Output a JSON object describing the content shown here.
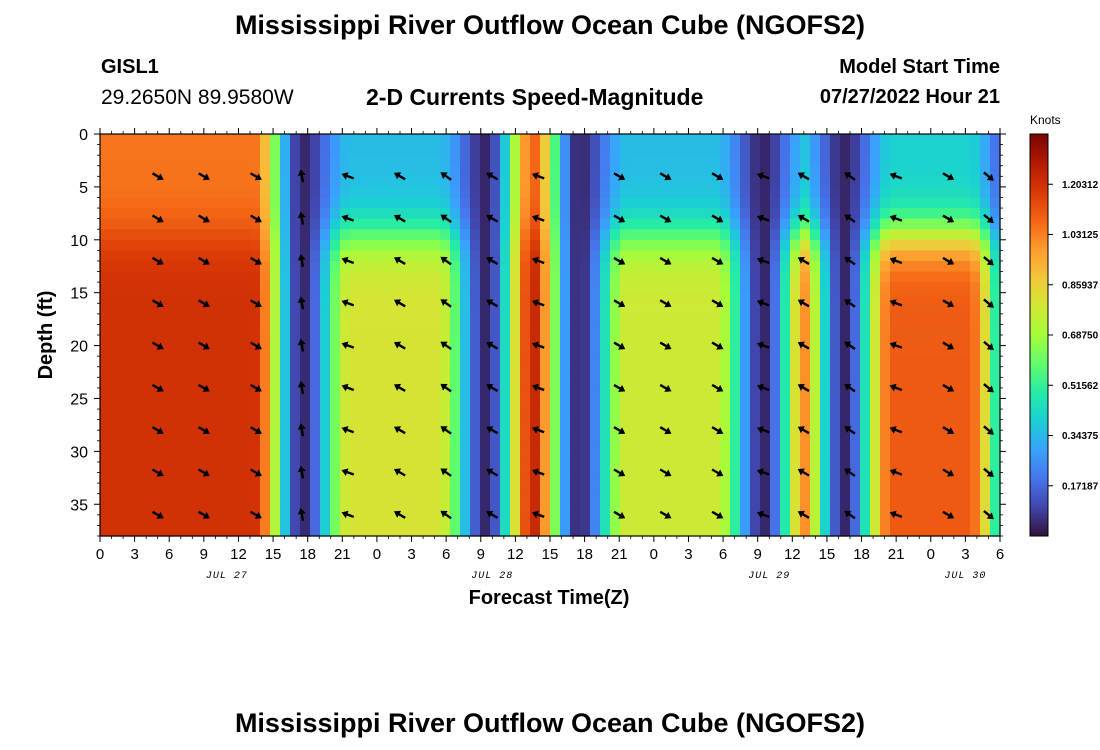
{
  "header": {
    "title": "Mississippi River Outflow Ocean Cube (NGOFS2)",
    "station_id": "GISL1",
    "station_coords": "29.2650N  89.9580W",
    "subtitle": "2-D Currents Speed-Magnitude",
    "model_start_label": "Model Start Time",
    "model_start_value": "07/27/2022 Hour 21"
  },
  "footer": {
    "title": "Mississippi River Outflow Ocean Cube (NGOFS2)"
  },
  "chart_data": {
    "type": "heatmap",
    "title": "2-D Currents Speed-Magnitude",
    "xlabel": "Forecast Time(Z)",
    "ylabel": "Depth (ft)",
    "x_range_hours": [
      0,
      78
    ],
    "x_tick_hours": [
      0,
      3,
      6,
      9,
      12,
      15,
      18,
      21,
      24,
      27,
      30,
      33,
      36,
      39,
      42,
      45,
      48,
      51,
      54,
      57,
      60,
      63,
      66,
      69,
      72,
      75,
      78
    ],
    "x_tick_labels": [
      "0",
      "3",
      "6",
      "9",
      "12",
      "15",
      "18",
      "21",
      "0",
      "3",
      "6",
      "9",
      "12",
      "15",
      "18",
      "21",
      "0",
      "3",
      "6",
      "9",
      "12",
      "15",
      "18",
      "21",
      "0",
      "3",
      "6"
    ],
    "date_labels": [
      {
        "text": "JUL 27",
        "hour": 11
      },
      {
        "text": "JUL 28",
        "hour": 34
      },
      {
        "text": "JUL 29",
        "hour": 58
      },
      {
        "text": "JUL 30",
        "hour": 75
      }
    ],
    "ylim": [
      0,
      38
    ],
    "y_ticks": [
      0,
      5,
      10,
      15,
      20,
      25,
      30,
      35
    ],
    "y_inverted": true,
    "colorbar": {
      "label": "Knots",
      "range": [
        0,
        1.375
      ],
      "ticks": [
        "0.17187",
        "0.34375",
        "0.51562",
        "0.68750",
        "0.85937",
        "1.03125",
        "1.20312"
      ],
      "colors": [
        "#30123b",
        "#4145ab",
        "#4675ed",
        "#39a2fc",
        "#1bcfd4",
        "#24eca6",
        "#61fc6c",
        "#a4fc3b",
        "#d1e834",
        "#f3c63a",
        "#fe9b2d",
        "#f36315",
        "#d93806",
        "#b11901",
        "#7a0402"
      ]
    },
    "speed_model": {
      "slack_hours": [
        17.5,
        33.5,
        41.5,
        57.5,
        64.5,
        79.5
      ],
      "upper_layer_max_depth_ft": 11,
      "lower_layer_speed_knots": [
        1.2,
        0.8,
        1.25,
        0.78,
        1.1
      ],
      "upper_layer_speed_knots": [
        1.05,
        0.35,
        1.1,
        0.35,
        0.4
      ]
    },
    "vectors": {
      "times_hours": [
        5,
        9,
        13.5,
        17.5,
        21.5,
        26,
        30,
        34,
        38,
        45,
        49,
        53.5,
        57.5,
        61,
        65,
        69,
        73.5,
        77
      ],
      "depths_ft": [
        0,
        4,
        8,
        12,
        16,
        20,
        24,
        28,
        32,
        36
      ],
      "angles_deg_by_column": [
        30,
        30,
        30,
        260,
        200,
        210,
        215,
        210,
        200,
        30,
        30,
        30,
        200,
        210,
        215,
        200,
        30,
        40
      ]
    }
  }
}
